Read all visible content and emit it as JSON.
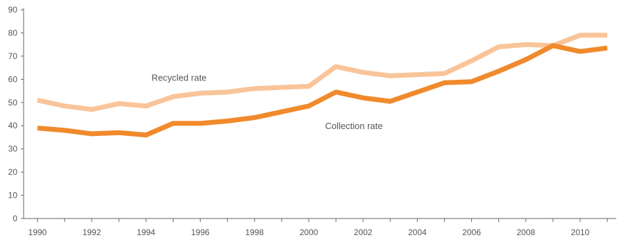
{
  "chart_data": {
    "type": "line",
    "title": "",
    "xlabel": "",
    "ylabel": "",
    "x": [
      1990,
      1991,
      1992,
      1993,
      1994,
      1995,
      1996,
      1997,
      1998,
      1999,
      2000,
      2001,
      2002,
      2003,
      2004,
      2005,
      2006,
      2007,
      2008,
      2009,
      2010,
      2011
    ],
    "x_tick_labels": [
      "1990",
      "1992",
      "1994",
      "1996",
      "1998",
      "2000",
      "2002",
      "2004",
      "2006",
      "2008",
      "2010"
    ],
    "y_tick_labels": [
      "0",
      "10",
      "20",
      "30",
      "40",
      "50",
      "60",
      "70",
      "80",
      "90"
    ],
    "ylim": [
      0,
      90
    ],
    "xlim": [
      1990,
      2011
    ],
    "grid": false,
    "legend": "none (series labelled directly on chart)",
    "series": [
      {
        "name": "Recycled rate",
        "color": "#f9c49a",
        "values": [
          51,
          48.5,
          47,
          49.5,
          48.5,
          52.5,
          54,
          54.5,
          56,
          56.5,
          57,
          65.5,
          63,
          61.5,
          62,
          62.5,
          68,
          74,
          75,
          74.5,
          79,
          79
        ]
      },
      {
        "name": "Collection rate",
        "color": "#f08a2c",
        "values": [
          39,
          38,
          36.5,
          37,
          36,
          41,
          41,
          42,
          43.5,
          46,
          48.5,
          54.5,
          52,
          50.5,
          54.5,
          58.5,
          59,
          63.5,
          68.5,
          74.5,
          72,
          73.5
        ]
      }
    ]
  }
}
